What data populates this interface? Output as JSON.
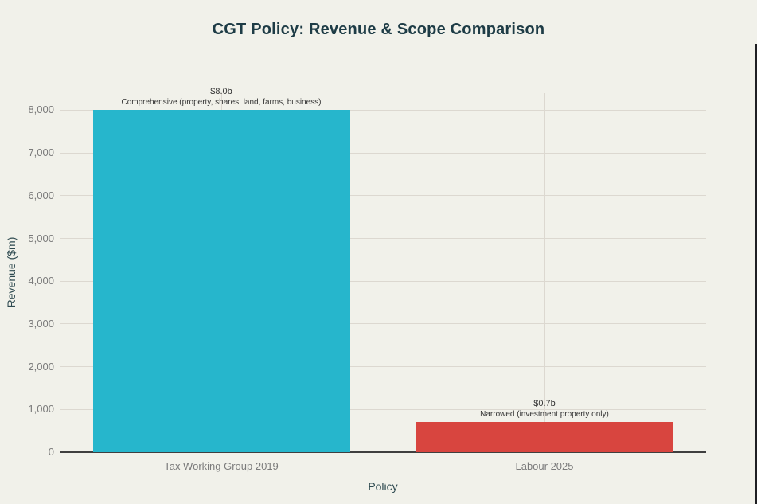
{
  "title": "CGT Policy: Revenue & Scope Comparison",
  "chart_data": {
    "type": "bar",
    "title": "CGT Policy: Revenue & Scope Comparison",
    "xlabel": "Policy",
    "ylabel": "Revenue ($m)",
    "categories": [
      "Tax Working Group 2019",
      "Labour 2025"
    ],
    "values": [
      8000,
      700
    ],
    "bar_colors": [
      "#26b6cc",
      "#d8453f"
    ],
    "annotations": [
      {
        "value_label": "$8.0b",
        "scope_label": "Comprehensive (property, shares, land, farms, business)"
      },
      {
        "value_label": "$0.7b",
        "scope_label": "Narrowed (investment property only)"
      }
    ],
    "ylim": [
      0,
      8400
    ],
    "ytick_step": 1000,
    "ytick_labels": [
      "0",
      "1,000",
      "2,000",
      "3,000",
      "4,000",
      "5,000",
      "6,000",
      "7,000",
      "8,000"
    ],
    "grid": true,
    "legend_position": "none"
  },
  "colors": {
    "background": "#f1f1ea",
    "grid": "#dcd8d0",
    "zero_line": "#3f3f3f",
    "tick_text": "#7b7b7b",
    "axis_title_text": "#2e4a50",
    "title_text": "#1e3c46",
    "annotation_text": "#333333",
    "bar_teal": "#26b6cc",
    "bar_red": "#d8453f"
  }
}
